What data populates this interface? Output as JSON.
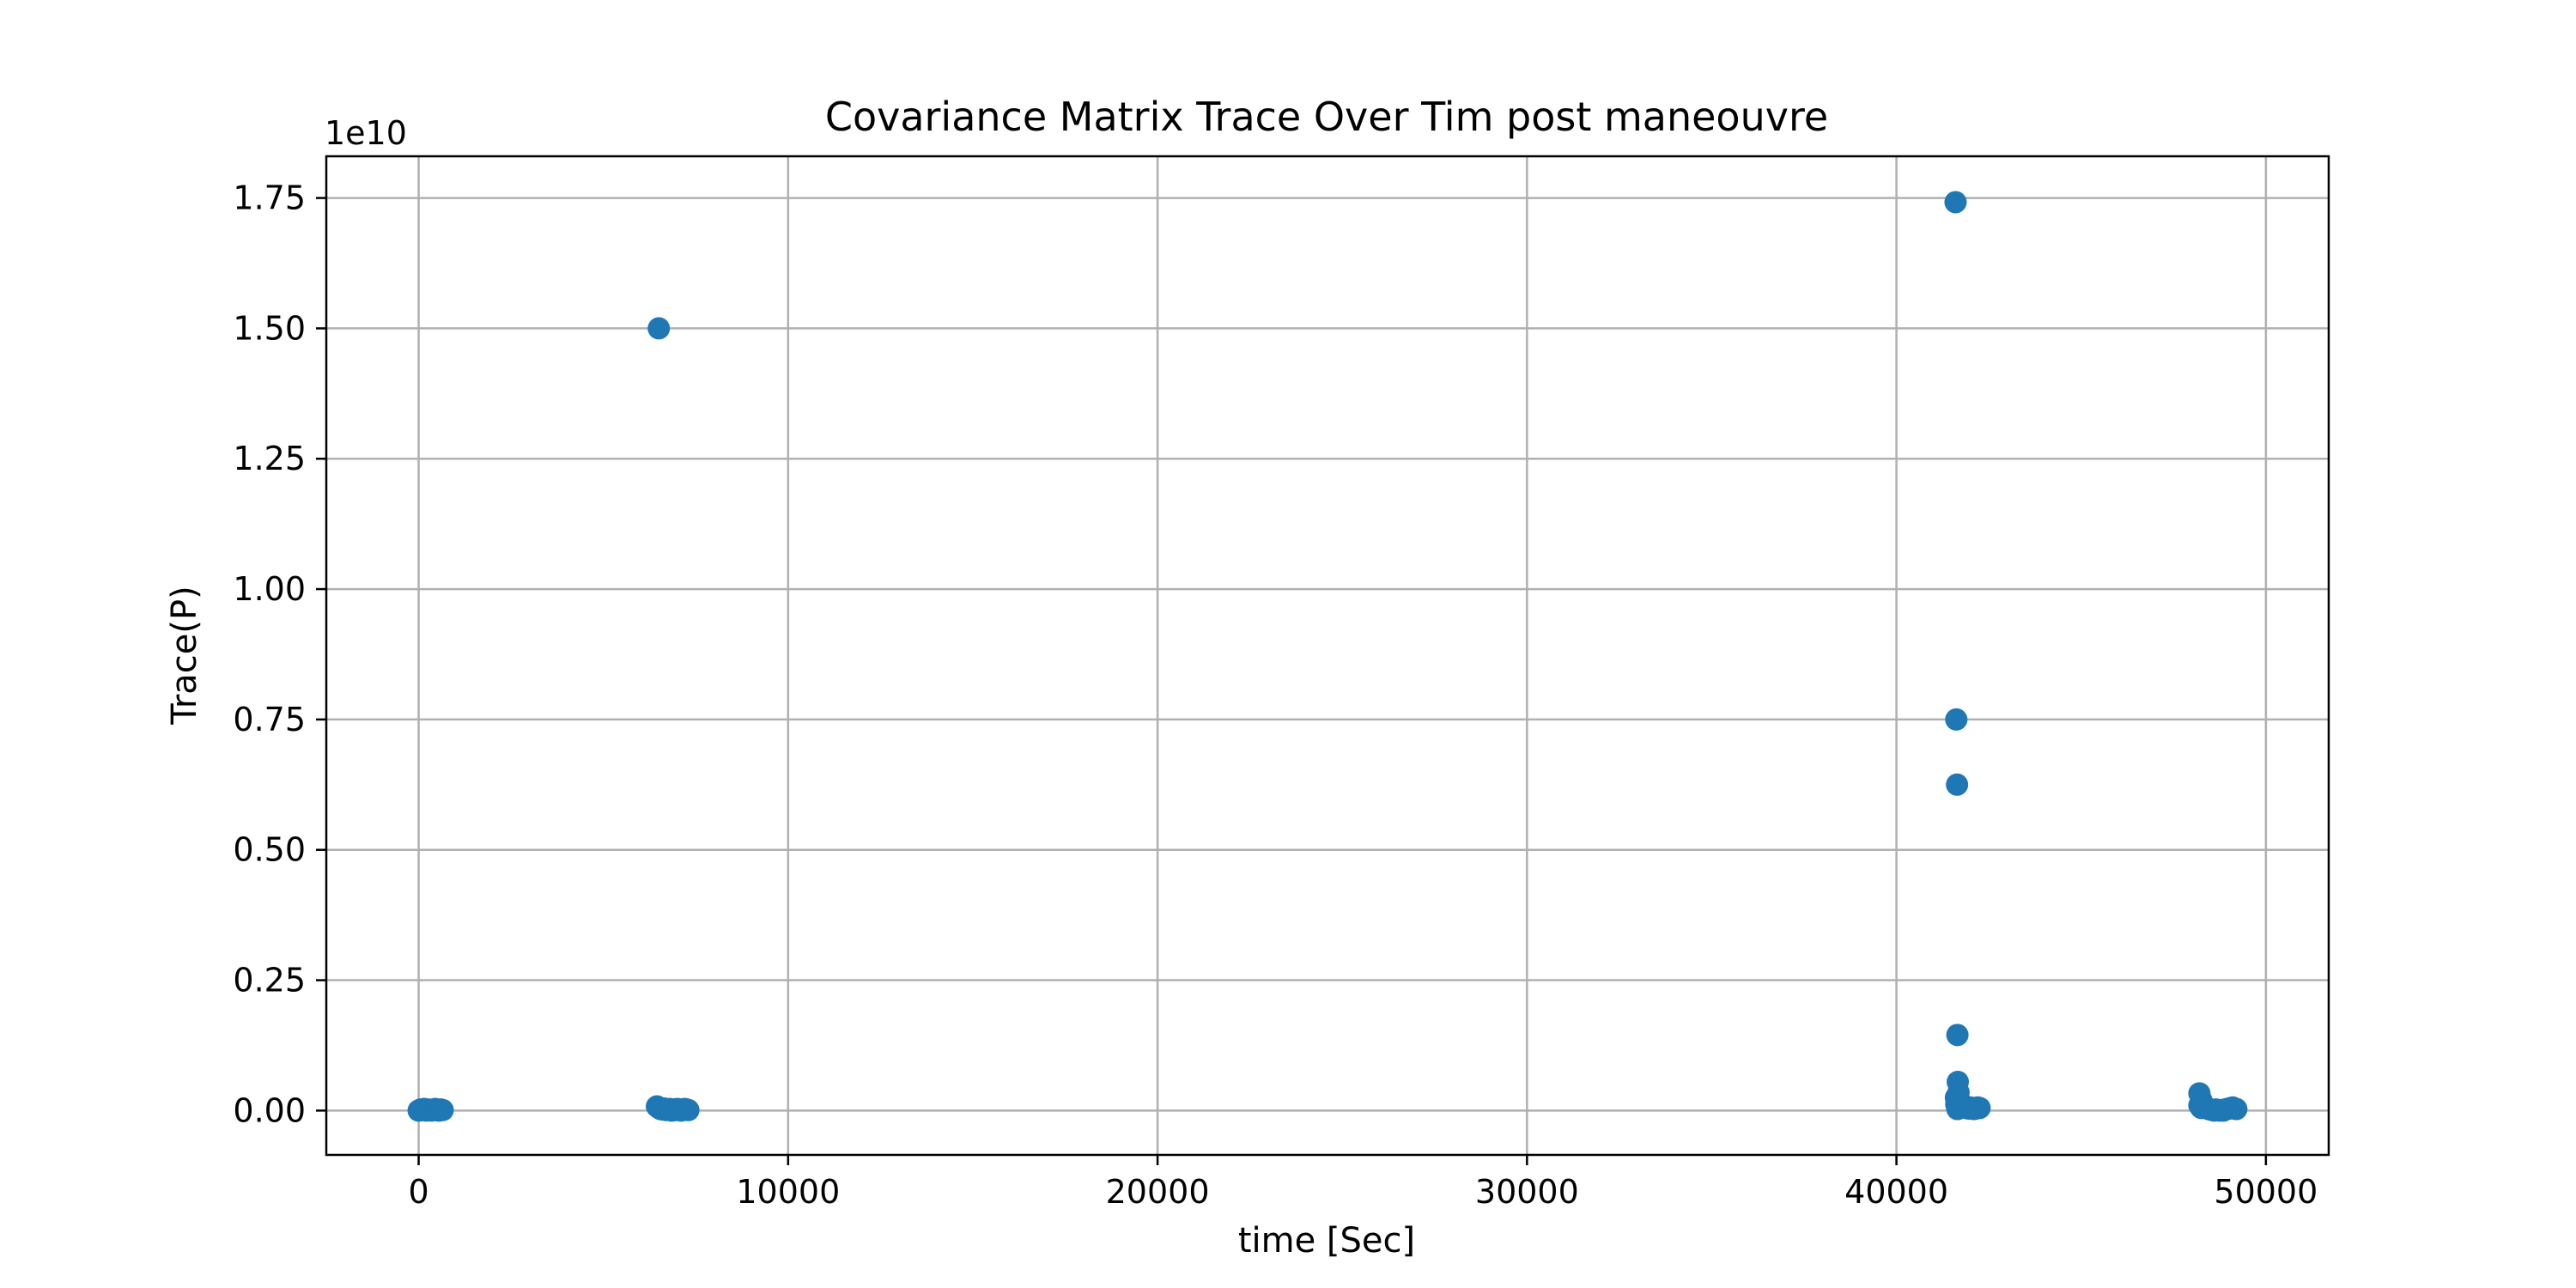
{
  "chart_data": {
    "type": "scatter",
    "title": "Covariance Matrix Trace Over Tim post maneouvre",
    "xlabel": "time [Sec]",
    "ylabel": "Trace(P)",
    "y_offset_label": "1e10",
    "xlim": [
      -2500,
      51700
    ],
    "ylim": [
      -0.085,
      1.83
    ],
    "grid": true,
    "color": "#1f77b4",
    "x_ticks": [
      0,
      10000,
      20000,
      30000,
      40000,
      50000
    ],
    "x_tick_labels": [
      "0",
      "10000",
      "20000",
      "30000",
      "40000",
      "50000"
    ],
    "y_ticks": [
      0.0,
      0.25,
      0.5,
      0.75,
      1.0,
      1.25,
      1.5,
      1.75
    ],
    "y_tick_labels": [
      "0.00",
      "0.25",
      "0.50",
      "0.75",
      "1.00",
      "1.25",
      "1.50",
      "1.75"
    ],
    "series": [
      {
        "x": [
          0,
          50,
          100,
          150,
          200,
          250,
          300,
          350,
          400,
          450,
          500,
          550,
          600,
          650,
          6450,
          6500,
          6550,
          6600,
          6650,
          6700,
          6750,
          6800,
          6850,
          6900,
          6950,
          7000,
          7050,
          7100,
          7150,
          7200,
          7250,
          7300,
          6500,
          41600,
          41620,
          41640,
          41650,
          41660,
          41680,
          41700,
          41700,
          41750,
          41800,
          41850,
          41900,
          41950,
          42000,
          42050,
          42100,
          42150,
          42200,
          42250,
          41610,
          41620,
          41640,
          41650,
          48200,
          48250,
          48300,
          48350,
          48400,
          48450,
          48500,
          48550,
          48600,
          48650,
          48700,
          48750,
          48800,
          48850,
          48900,
          48950,
          49000,
          49050,
          49100,
          49150,
          49200,
          48200,
          48250
        ],
        "y": [
          0.0,
          0.002,
          0.001,
          0.003,
          0.0,
          0.002,
          0.001,
          0.0,
          0.002,
          0.003,
          0.001,
          0.0,
          0.002,
          0.001,
          0.008,
          0.005,
          0.003,
          0.002,
          0.004,
          0.001,
          0.002,
          0.003,
          0.0,
          0.002,
          0.001,
          0.003,
          0.002,
          0.0,
          0.001,
          0.003,
          0.002,
          0.001,
          1.5,
          1.742,
          0.75,
          0.625,
          0.145,
          0.055,
          0.035,
          0.02,
          0.005,
          0.01,
          0.008,
          0.006,
          0.005,
          0.004,
          0.006,
          0.005,
          0.003,
          0.004,
          0.006,
          0.005,
          0.025,
          0.012,
          0.008,
          0.003,
          0.033,
          0.02,
          0.012,
          0.008,
          0.005,
          0.003,
          0.002,
          0.001,
          0.0,
          0.002,
          0.001,
          0.0,
          0.001,
          0.0,
          0.002,
          0.003,
          0.004,
          0.005,
          0.006,
          0.004,
          0.003,
          0.01,
          0.005
        ]
      }
    ]
  }
}
